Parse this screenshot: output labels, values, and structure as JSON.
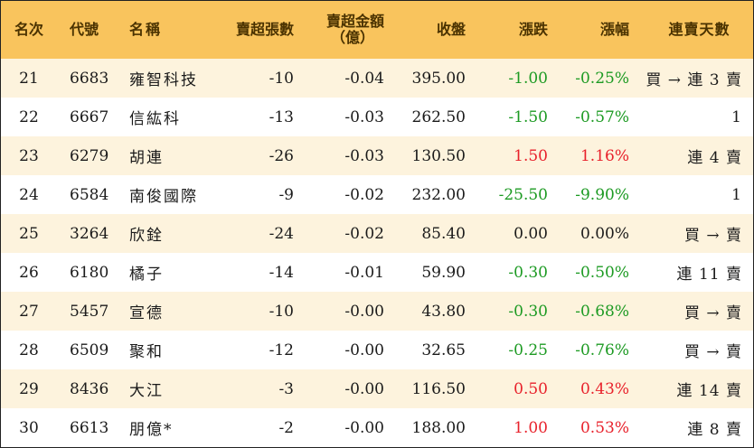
{
  "table": {
    "headers": {
      "rank": "名次",
      "code": "代號",
      "name": "名稱",
      "net_sell_lots": "賣超張數",
      "net_sell_amount_line1": "賣超金額",
      "net_sell_amount_line2": "（億）",
      "close": "收盤",
      "change": "漲跌",
      "change_pct": "漲幅",
      "consecutive_sell_days": "連賣天數"
    },
    "rows": [
      {
        "rank": "21",
        "code": "6683",
        "name": "雍智科技",
        "lots": "-10",
        "amount": "-0.04",
        "close": "395.00",
        "change": "-1.00",
        "pct": "-0.25%",
        "days": "買 → 連 3 賣",
        "dir": "neg"
      },
      {
        "rank": "22",
        "code": "6667",
        "name": "信紘科",
        "lots": "-13",
        "amount": "-0.03",
        "close": "262.50",
        "change": "-1.50",
        "pct": "-0.57%",
        "days": "1",
        "dir": "neg"
      },
      {
        "rank": "23",
        "code": "6279",
        "name": "胡連",
        "lots": "-26",
        "amount": "-0.03",
        "close": "130.50",
        "change": "1.50",
        "pct": "1.16%",
        "days": "連 4 賣",
        "dir": "pos"
      },
      {
        "rank": "24",
        "code": "6584",
        "name": "南俊國際",
        "lots": "-9",
        "amount": "-0.02",
        "close": "232.00",
        "change": "-25.50",
        "pct": "-9.90%",
        "days": "1",
        "dir": "neg"
      },
      {
        "rank": "25",
        "code": "3264",
        "name": "欣銓",
        "lots": "-24",
        "amount": "-0.02",
        "close": "85.40",
        "change": "0.00",
        "pct": "0.00%",
        "days": "買 → 賣",
        "dir": "flat"
      },
      {
        "rank": "26",
        "code": "6180",
        "name": "橘子",
        "lots": "-14",
        "amount": "-0.01",
        "close": "59.90",
        "change": "-0.30",
        "pct": "-0.50%",
        "days": "連 11 賣",
        "dir": "neg"
      },
      {
        "rank": "27",
        "code": "5457",
        "name": "宣德",
        "lots": "-10",
        "amount": "-0.00",
        "close": "43.80",
        "change": "-0.30",
        "pct": "-0.68%",
        "days": "買 → 賣",
        "dir": "neg"
      },
      {
        "rank": "28",
        "code": "6509",
        "name": "聚和",
        "lots": "-12",
        "amount": "-0.00",
        "close": "32.65",
        "change": "-0.25",
        "pct": "-0.76%",
        "days": "買 → 賣",
        "dir": "neg"
      },
      {
        "rank": "29",
        "code": "8436",
        "name": "大江",
        "lots": "-3",
        "amount": "-0.00",
        "close": "116.50",
        "change": "0.50",
        "pct": "0.43%",
        "days": "連 14 賣",
        "dir": "pos"
      },
      {
        "rank": "30",
        "code": "6613",
        "name": "朋億*",
        "lots": "-2",
        "amount": "-0.00",
        "close": "188.00",
        "change": "1.00",
        "pct": "0.53%",
        "days": "連 8 賣",
        "dir": "pos"
      }
    ]
  },
  "colors": {
    "header_bg": "#f9c45d",
    "stripe_bg": "#fdf3dd",
    "up": "#e8212b",
    "down": "#1c9a22"
  }
}
